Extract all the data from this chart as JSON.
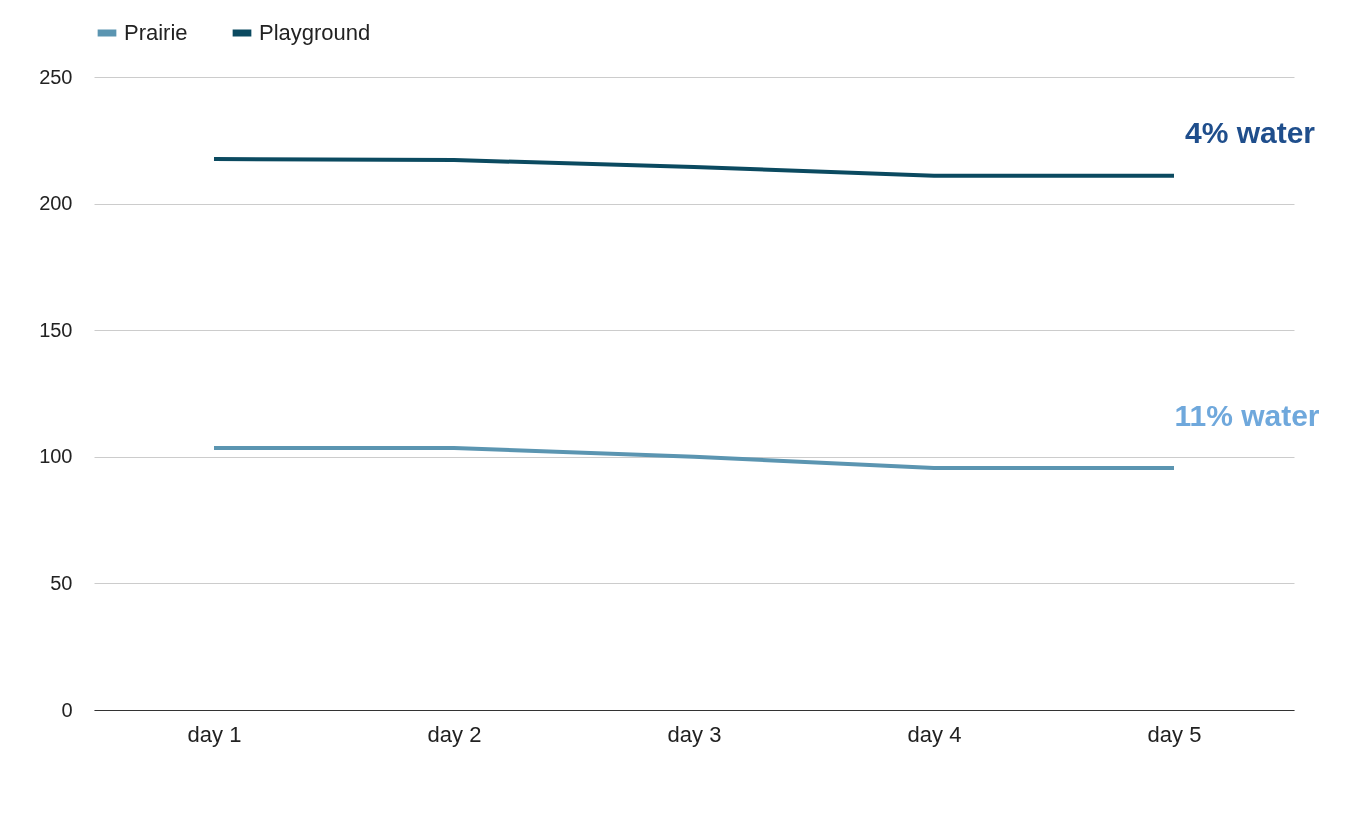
{
  "chart_data": {
    "type": "line",
    "categories": [
      "day 1",
      "day 2",
      "day 3",
      "day 4",
      "day 5"
    ],
    "series": [
      {
        "name": "Prairie",
        "color": "#5b95b1",
        "values": [
          103.5,
          103.5,
          100,
          95.6,
          95.6
        ]
      },
      {
        "name": "Playground",
        "color": "#0b4a60",
        "values": [
          217.6,
          217.2,
          214.5,
          211,
          211
        ]
      }
    ],
    "annotations": [
      "4% water",
      "11% water"
    ],
    "ylim": [
      0,
      250
    ],
    "yticks": [
      0,
      50,
      100,
      150,
      200,
      250
    ],
    "grid": "y",
    "legend": "top",
    "marker": "none",
    "line_style": "solid"
  }
}
